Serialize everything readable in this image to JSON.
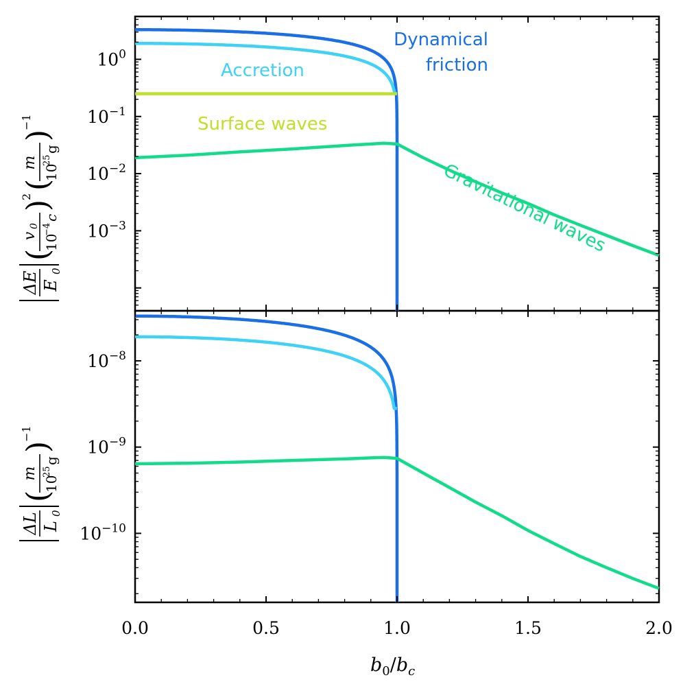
{
  "figure": {
    "xlabel_main": "b",
    "xlabel_sub0": "0",
    "xlabel_sep": "/",
    "xlabel_main2": "b",
    "xlabel_subc": "c"
  },
  "top_ylabel": {
    "num_left": "ΔE",
    "den_left": "E",
    "den_left_sub": "0",
    "frac2_num": "v",
    "frac2_num_sub": "0",
    "frac2_den": "10",
    "frac2_den_exp": "−4",
    "frac2_den_c": "c",
    "power2": "2",
    "frac3_num": "m",
    "frac3_den": "10",
    "frac3_den_exp": "25",
    "frac3_den_unit": "g",
    "power_neg1": "−1"
  },
  "bottom_ylabel": {
    "num_left": "ΔL",
    "den_left": "L",
    "den_left_sub": "0",
    "frac3_num": "m",
    "frac3_den": "10",
    "frac3_den_exp": "25",
    "frac3_den_unit": "g",
    "power_neg1": "−1"
  },
  "colors": {
    "dynamical_friction": "#1a6ee6",
    "accretion": "#3fd2f4",
    "surface_waves": "#bfe02a",
    "gravitational_waves": "#12dc8c"
  },
  "chart_data": [
    {
      "type": "line",
      "panel": "top",
      "yscale": "log",
      "xlim": [
        0.0,
        2.0
      ],
      "ylim_log10": [
        -4.4,
        0.75
      ],
      "yticks": [
        {
          "base": "10",
          "exp": "0",
          "value": 1
        },
        {
          "base": "10",
          "exp": "−1",
          "value": 0.1
        },
        {
          "base": "10",
          "exp": "−2",
          "value": 0.01
        },
        {
          "base": "10",
          "exp": "−3",
          "value": 0.001
        }
      ],
      "annotations": [
        {
          "text_lines": [
            "Dynamical",
            "friction"
          ],
          "series": "Dynamical friction"
        },
        {
          "text_lines": [
            "Accretion"
          ],
          "series": "Accretion"
        },
        {
          "text_lines": [
            "Surface waves"
          ],
          "series": "Surface waves"
        },
        {
          "text_lines": [
            "Gravitational waves"
          ],
          "series": "Gravitational waves"
        }
      ],
      "series": [
        {
          "name": "Dynamical friction",
          "amplitude": 3.3,
          "cutoff": 1.0,
          "shape": "sqrt_drop"
        },
        {
          "name": "Accretion",
          "amplitude": 1.9,
          "cutoff": 1.0,
          "shape": "sqrt_drop_stop",
          "end_value": 0.25
        },
        {
          "name": "Surface waves",
          "x": [
            0.0,
            1.0
          ],
          "y": [
            0.25,
            0.25
          ]
        },
        {
          "name": "Gravitational waves",
          "x": [
            0.0,
            0.2,
            0.4,
            0.6,
            0.8,
            0.9,
            0.95,
            1.0,
            1.1,
            1.2,
            1.3,
            1.4,
            1.5,
            1.6,
            1.7,
            1.8,
            1.9,
            2.0
          ],
          "y": [
            0.019,
            0.021,
            0.024,
            0.027,
            0.031,
            0.033,
            0.034,
            0.033,
            0.019,
            0.0115,
            0.0072,
            0.0046,
            0.003,
            0.0019,
            0.00125,
            0.00083,
            0.00055,
            0.00037
          ]
        }
      ]
    },
    {
      "type": "line",
      "panel": "bottom",
      "yscale": "log",
      "xlim": [
        0.0,
        2.0
      ],
      "ylim_log10": [
        -10.8,
        -7.42
      ],
      "yticks": [
        {
          "base": "10",
          "exp": "−8",
          "value": 1e-08
        },
        {
          "base": "10",
          "exp": "−9",
          "value": 1e-09
        },
        {
          "base": "10",
          "exp": "−10",
          "value": 1e-10
        }
      ],
      "xticks": [
        {
          "label": "0.0",
          "value": 0.0
        },
        {
          "label": "0.5",
          "value": 0.5
        },
        {
          "label": "1.0",
          "value": 1.0
        },
        {
          "label": "1.5",
          "value": 1.5
        },
        {
          "label": "2.0",
          "value": 2.0
        }
      ],
      "series": [
        {
          "name": "Dynamical friction",
          "amplitude": 3.3e-08,
          "cutoff": 1.0,
          "shape": "sqrt_drop"
        },
        {
          "name": "Accretion",
          "amplitude": 1.9e-08,
          "cutoff": 1.0,
          "shape": "sqrt_drop_stop",
          "end_value": 2.8e-09
        },
        {
          "name": "Gravitational waves",
          "x": [
            0.0,
            0.2,
            0.4,
            0.6,
            0.8,
            0.9,
            0.95,
            1.0,
            1.1,
            1.2,
            1.3,
            1.4,
            1.5,
            1.6,
            1.7,
            1.8,
            1.9,
            2.0
          ],
          "y": [
            6.4e-10,
            6.5e-10,
            6.7e-10,
            7e-10,
            7.3e-10,
            7.5e-10,
            7.6e-10,
            7.4e-10,
            5e-10,
            3.4e-10,
            2.3e-10,
            1.6e-10,
            1.08e-10,
            7.6e-11,
            5.4e-11,
            4e-11,
            3e-11,
            2.3e-11
          ]
        }
      ]
    }
  ]
}
